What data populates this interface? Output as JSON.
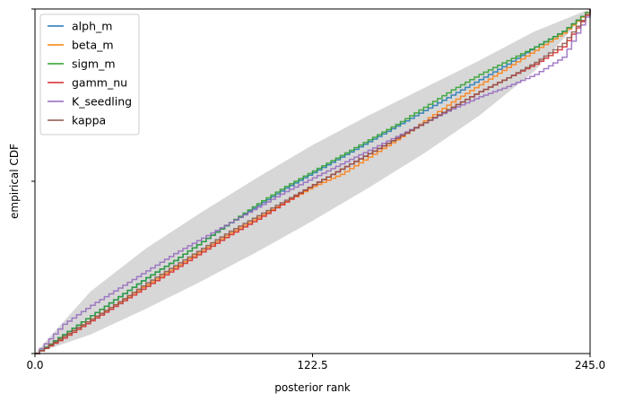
{
  "chart_data": {
    "type": "line",
    "title": "",
    "xlabel": "posterior rank",
    "ylabel": "empirical CDF",
    "xlim": [
      0,
      245
    ],
    "ylim": [
      0,
      1
    ],
    "x_ticks": [
      "0.0",
      "122.5",
      "245.0"
    ],
    "y_ticks_labeled": false,
    "grid": false,
    "legend_position": "top-left",
    "confidence_band": {
      "color": "#d3d3d3",
      "x": [
        0,
        24.5,
        49,
        73.5,
        98,
        122.5,
        147,
        171.5,
        196,
        220.5,
        245
      ],
      "lower": [
        0,
        0.055,
        0.13,
        0.21,
        0.295,
        0.385,
        0.48,
        0.58,
        0.69,
        0.82,
        1.0
      ],
      "upper": [
        0,
        0.18,
        0.305,
        0.41,
        0.51,
        0.605,
        0.69,
        0.77,
        0.85,
        0.935,
        1.0
      ]
    },
    "x": [
      0,
      12.25,
      24.5,
      36.75,
      49,
      61.25,
      73.5,
      85.75,
      98,
      110.25,
      122.5,
      134.75,
      147,
      159.25,
      171.5,
      183.75,
      196,
      208.25,
      220.5,
      232.75,
      245
    ],
    "series": [
      {
        "name": "alph_m",
        "color": "#1f77b4",
        "values": [
          0,
          0.055,
          0.11,
          0.165,
          0.22,
          0.27,
          0.325,
          0.38,
          0.43,
          0.48,
          0.525,
          0.57,
          0.615,
          0.66,
          0.705,
          0.75,
          0.795,
          0.84,
          0.89,
          0.935,
          1.0
        ]
      },
      {
        "name": "beta_m",
        "color": "#ff7f0e",
        "values": [
          0,
          0.05,
          0.1,
          0.15,
          0.2,
          0.25,
          0.3,
          0.35,
          0.395,
          0.44,
          0.485,
          0.52,
          0.57,
          0.62,
          0.675,
          0.73,
          0.78,
          0.83,
          0.88,
          0.93,
          1.0
        ]
      },
      {
        "name": "sigm_m",
        "color": "#2ca02c",
        "values": [
          0,
          0.055,
          0.11,
          0.165,
          0.22,
          0.27,
          0.325,
          0.38,
          0.435,
          0.485,
          0.53,
          0.575,
          0.62,
          0.665,
          0.715,
          0.765,
          0.81,
          0.85,
          0.89,
          0.935,
          1.0
        ]
      },
      {
        "name": "gamm_nu",
        "color": "#d62728",
        "values": [
          0,
          0.045,
          0.095,
          0.145,
          0.195,
          0.245,
          0.295,
          0.345,
          0.39,
          0.44,
          0.49,
          0.535,
          0.58,
          0.625,
          0.67,
          0.715,
          0.76,
          0.8,
          0.84,
          0.89,
          1.0
        ]
      },
      {
        "name": "K_seedling",
        "color": "#9467bd",
        "values": [
          0,
          0.085,
          0.14,
          0.19,
          0.24,
          0.29,
          0.335,
          0.38,
          0.425,
          0.47,
          0.51,
          0.55,
          0.59,
          0.63,
          0.67,
          0.71,
          0.745,
          0.775,
          0.81,
          0.86,
          1.0
        ]
      },
      {
        "name": "kappa",
        "color": "#8c564b",
        "values": [
          0,
          0.05,
          0.1,
          0.15,
          0.205,
          0.255,
          0.305,
          0.355,
          0.4,
          0.445,
          0.49,
          0.535,
          0.58,
          0.625,
          0.67,
          0.715,
          0.76,
          0.8,
          0.845,
          0.9,
          1.0
        ]
      }
    ]
  }
}
